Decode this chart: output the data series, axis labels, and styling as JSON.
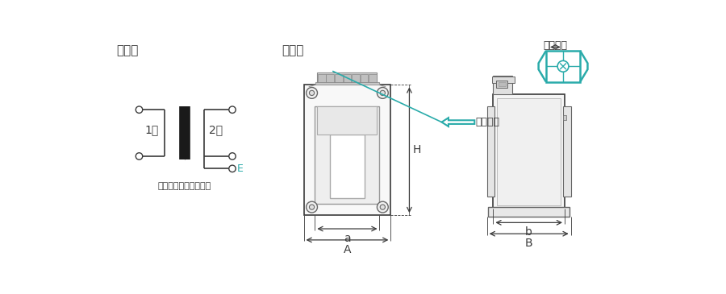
{
  "bg_color": "#ffffff",
  "line_color": "#3a3a3a",
  "gray_color": "#aaaaaa",
  "dark_gray": "#666666",
  "teal_color": "#2aabaa",
  "title_kessenzo": "結線図",
  "title_sunpouzu": "寸法図",
  "label_1ji": "1次",
  "label_2ji": "2次",
  "label_E": "E",
  "label_shield": "（静電シールド端子）",
  "label_tanshi_neji": "端子ネジ",
  "label_tanshi_kankaku": "端子間隔",
  "label_H": "H",
  "label_a": "a",
  "label_A": "A",
  "label_b": "b",
  "label_B": "B"
}
